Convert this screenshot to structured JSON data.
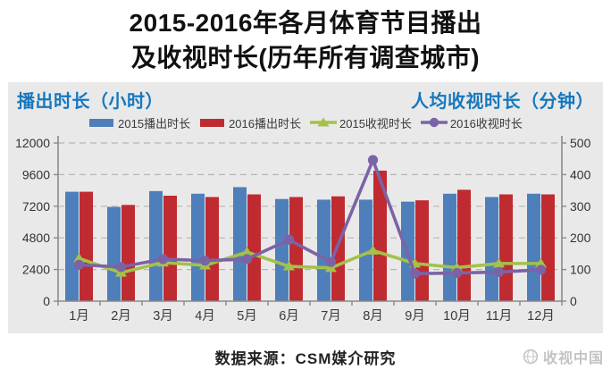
{
  "title": {
    "line1": "2015-2016年各月体育节目播出",
    "line2": "及收视时长(历年所有调查城市)"
  },
  "axes": {
    "left_title": "播出时长（小时）",
    "right_title": "人均收视时长（分钟）"
  },
  "footer": {
    "source": "数据来源：CSM媒介研究"
  },
  "watermark": {
    "text": "收视中国",
    "icon": "globe-icon"
  },
  "colors": {
    "panel_bg": "#e9e9e9",
    "grid": "#b5b5b5",
    "axis": "#8a8a8a",
    "tick_label": "#333333",
    "axis_title_blue": "#1778be",
    "bar_2015": "#4f7fba",
    "bar_2016": "#bf2b31",
    "line_2015": "#a3c14b",
    "line_2016": "#7b63a6"
  },
  "chart_data": {
    "type": "bar+line combo",
    "categories": [
      "1月",
      "2月",
      "3月",
      "4月",
      "5月",
      "6月",
      "7月",
      "8月",
      "9月",
      "10月",
      "11月",
      "12月"
    ],
    "series": [
      {
        "name": "2015播出时长",
        "type": "bar",
        "axis": "left",
        "color": "#4f7fba",
        "marker": "none",
        "values": [
          8300,
          7150,
          8350,
          8150,
          8650,
          7750,
          7700,
          7700,
          7550,
          8150,
          7900,
          8150
        ]
      },
      {
        "name": "2016播出时长",
        "type": "bar",
        "axis": "left",
        "color": "#bf2b31",
        "marker": "none",
        "values": [
          8300,
          7300,
          8000,
          7900,
          8100,
          7900,
          7950,
          9900,
          7650,
          8450,
          8100,
          8100
        ]
      },
      {
        "name": "2015收视时长",
        "type": "line",
        "axis": "right",
        "color": "#a3c14b",
        "marker": "triangle",
        "values": [
          135,
          90,
          122,
          113,
          155,
          110,
          105,
          160,
          119,
          106,
          119,
          119
        ]
      },
      {
        "name": "2016收视时长",
        "type": "line",
        "axis": "right",
        "color": "#7b63a6",
        "marker": "circle",
        "values": [
          115,
          108,
          133,
          128,
          133,
          194,
          124,
          446,
          87,
          89,
          92,
          99
        ]
      }
    ],
    "left_axis": {
      "title": "播出时长（小时）",
      "lim": [
        0,
        12000
      ],
      "ticks": [
        0,
        2400,
        4800,
        7200,
        9600,
        12000
      ]
    },
    "right_axis": {
      "title": "人均收视时长（分钟）",
      "lim": [
        0,
        500
      ],
      "ticks": [
        0,
        100,
        200,
        300,
        400,
        500
      ]
    },
    "grid": "dashed horizontal",
    "legend_position": "top center",
    "plot_bg": "#e9e9e9"
  }
}
